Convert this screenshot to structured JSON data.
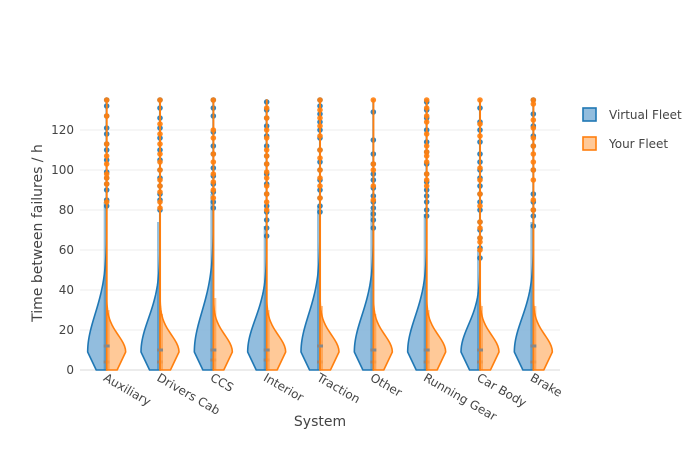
{
  "chart_data": {
    "type": "violin",
    "title": "",
    "xlabel": "System",
    "ylabel": "Time between failures / h",
    "ylim": [
      0,
      135
    ],
    "yticks": [
      0,
      20,
      40,
      60,
      80,
      100,
      120
    ],
    "grid": "horizontal",
    "legend_position": "top-right",
    "mode": "split",
    "categories": [
      "Auxiliary",
      "Drivers Cab",
      "CCS",
      "Interior",
      "Traction",
      "Other",
      "Running Gear",
      "Car Body",
      "Brake"
    ],
    "series": [
      {
        "name": "Virtual Fleet",
        "side": "negative",
        "color": "#1f77b4",
        "fill": "#7fb1d8",
        "medians": [
          4,
          4,
          5,
          5,
          4,
          4,
          4,
          4,
          4
        ],
        "q3": [
          84,
          74,
          88,
          72,
          82,
          80,
          78,
          60,
          74
        ],
        "points": [
          [
            135,
            132,
            127,
            121,
            118,
            113,
            110,
            105,
            99,
            96,
            93,
            90,
            85,
            82
          ],
          [
            135,
            131,
            126,
            121,
            116,
            110,
            105,
            100,
            96,
            92,
            88,
            85,
            80
          ],
          [
            135,
            131,
            127,
            119,
            112,
            108,
            101,
            97,
            93,
            89,
            84,
            81
          ],
          [
            134,
            130,
            126,
            122,
            117,
            112,
            107,
            103,
            98,
            93,
            88,
            82,
            79,
            75,
            71,
            67
          ],
          [
            135,
            132,
            128,
            124,
            120,
            116,
            110,
            104,
            100,
            95,
            90,
            86,
            82,
            79
          ],
          [
            129,
            115,
            108,
            103,
            98,
            95,
            91,
            87,
            84,
            81,
            78,
            75,
            71
          ],
          [
            134,
            130,
            126,
            120,
            114,
            109,
            103,
            98,
            94,
            90,
            87,
            84,
            80,
            77
          ],
          [
            131,
            124,
            120,
            114,
            108,
            104,
            100,
            96,
            92,
            88,
            84,
            80,
            74,
            70,
            66,
            61,
            56
          ],
          [
            135,
            128,
            122,
            117,
            112,
            100,
            88,
            84,
            80,
            77,
            72
          ]
        ]
      },
      {
        "name": "Your Fleet",
        "side": "positive",
        "color": "#ff7f0e",
        "fill": "#ffbf86",
        "medians": [
          12,
          10,
          10,
          10,
          12,
          10,
          10,
          10,
          12
        ],
        "q3": [
          30,
          28,
          36,
          30,
          32,
          28,
          30,
          32,
          32
        ],
        "points": [
          [
            135,
            127,
            113,
            107,
            103,
            98,
            96,
            93,
            84
          ],
          [
            135,
            123,
            118,
            113,
            108,
            104,
            100,
            95,
            92,
            89,
            84,
            81
          ],
          [
            135,
            120,
            116,
            108,
            104,
            98,
            94,
            90,
            86
          ],
          [
            131,
            126,
            120,
            116,
            110,
            107,
            103,
            99,
            96,
            92,
            88,
            84,
            80
          ],
          [
            135,
            130,
            126,
            122,
            117,
            110,
            106,
            100,
            96,
            92,
            86
          ],
          [
            135,
            103,
            100,
            92,
            85
          ],
          [
            135,
            131,
            127,
            124,
            118,
            112,
            109,
            107,
            104,
            98,
            95,
            92
          ],
          [
            135,
            123,
            117,
            101,
            95,
            88,
            82,
            74,
            71,
            66,
            64,
            60
          ],
          [
            135,
            133,
            125,
            121,
            116,
            112,
            108,
            104,
            100,
            95,
            85,
            80
          ]
        ]
      }
    ]
  }
}
